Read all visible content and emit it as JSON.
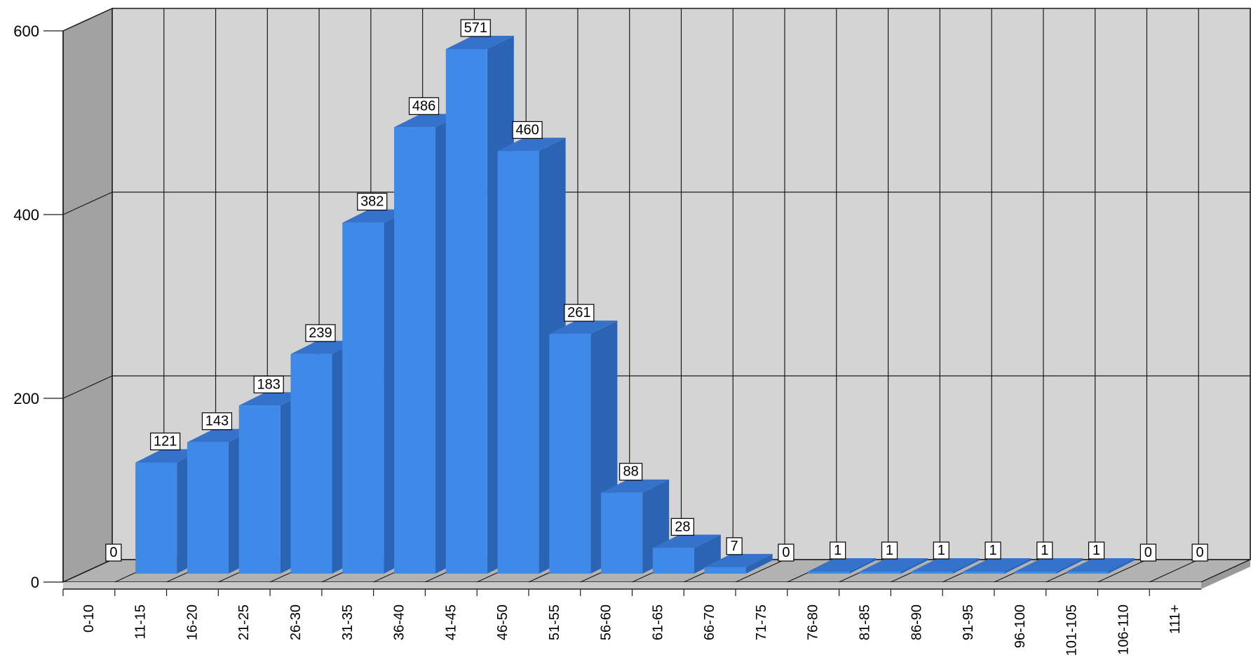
{
  "chart_data": {
    "type": "bar",
    "style": "3d-column",
    "categories": [
      "0-10",
      "11-15",
      "16-20",
      "21-25",
      "26-30",
      "31-35",
      "36-40",
      "41-45",
      "46-50",
      "51-55",
      "56-60",
      "61-65",
      "66-70",
      "71-75",
      "76-80",
      "81-85",
      "86-90",
      "91-95",
      "96-100",
      "101-105",
      "106-110",
      "111+"
    ],
    "values": [
      0,
      121,
      143,
      183,
      239,
      382,
      486,
      571,
      460,
      261,
      88,
      28,
      7,
      0,
      1,
      1,
      1,
      1,
      1,
      1,
      0,
      0
    ],
    "data_labels": [
      "0",
      "121",
      "143",
      "183",
      "239",
      "382",
      "486",
      "571",
      "460",
      "261",
      "88",
      "28",
      "7",
      "0",
      "1",
      "1",
      "1",
      "1",
      "1",
      "1",
      "0",
      "0"
    ],
    "y_ticks": [
      0,
      200,
      400,
      600
    ],
    "y_tick_labels": [
      "0",
      "200",
      "400",
      "600"
    ],
    "ylim": [
      0,
      600
    ],
    "grid": true,
    "legend": "none",
    "title": "",
    "xlabel": "",
    "ylabel": "",
    "colors": {
      "bar_front": "#3e8ae8",
      "bar_side": "#2c64b4",
      "bar_top": "#3572cc",
      "back_wall": "#d4d4d4",
      "side_wall": "#a2a2a2",
      "floor": "#b2b2b2",
      "grid": "#1a1a1a"
    }
  }
}
